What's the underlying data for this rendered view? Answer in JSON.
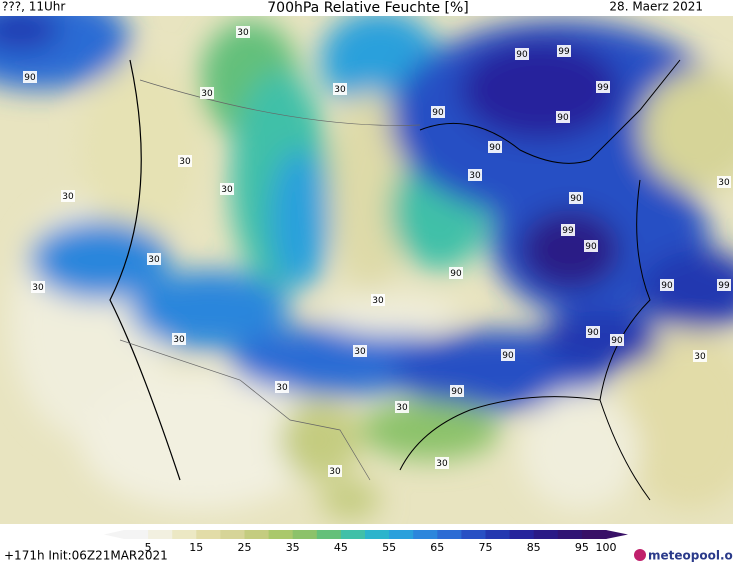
{
  "header": {
    "left": "???, 11Uhr",
    "title": "700hPa Relative Feuchte [%]",
    "right": "28. Maerz 2021"
  },
  "contour_labels": [
    90,
    30,
    30,
    30,
    30,
    30,
    30,
    30,
    30,
    30,
    30,
    30,
    30,
    30,
    30,
    30,
    30,
    30,
    30,
    90,
    99,
    99,
    90,
    90,
    90,
    90,
    99,
    90,
    90,
    90,
    99,
    90,
    90,
    90,
    90
  ],
  "colorbar": {
    "ticks": [
      5,
      15,
      25,
      35,
      45,
      55,
      65,
      75,
      85,
      95,
      100
    ],
    "lim": [
      0,
      100
    ],
    "colors": [
      "#f4f4f4",
      "#f2f0e0",
      "#ece8c4",
      "#e2dca8",
      "#d6d498",
      "#c4cc80",
      "#aac86c",
      "#8cc26a",
      "#64c07a",
      "#40c0a8",
      "#2cb4cc",
      "#2aa0dc",
      "#2c86dc",
      "#2c6cd4",
      "#2850c4",
      "#2438b0",
      "#26249c",
      "#2a1a86",
      "#301474",
      "#381066"
    ]
  },
  "footer": {
    "left": "+171h Init:06Z21MAR2021",
    "logo": "meteopool.org"
  }
}
